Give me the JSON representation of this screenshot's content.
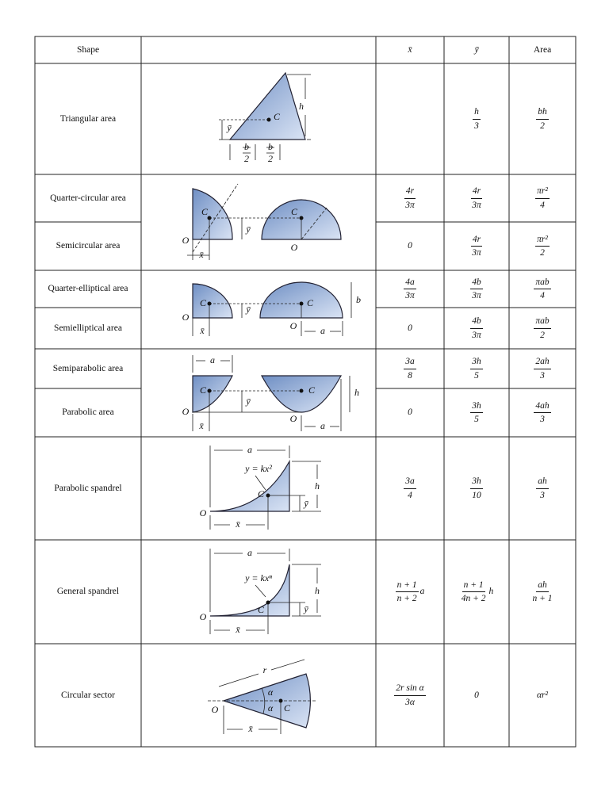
{
  "header": {
    "shape": "Shape",
    "x": "x̄",
    "y": "ȳ",
    "area": "Area"
  },
  "rows": [
    {
      "shape": "Triangular area",
      "y": {
        "num": "h",
        "den": "3"
      },
      "area": {
        "num": "bh",
        "den": "2"
      }
    },
    {
      "shape": "Quarter-circular area",
      "x": {
        "num": "4r",
        "den": "3π"
      },
      "y": {
        "num": "4r",
        "den": "3π"
      },
      "area": {
        "num": "πr²",
        "den": "4"
      }
    },
    {
      "shape": "Semicircular area",
      "x": 0,
      "y": {
        "num": "4r",
        "den": "3π"
      },
      "area": {
        "num": "πr²",
        "den": "2"
      }
    },
    {
      "shape": "Quarter-elliptical area",
      "x": {
        "num": "4a",
        "den": "3π"
      },
      "y": {
        "num": "4b",
        "den": "3π"
      },
      "area": {
        "num": "πab",
        "den": "4"
      }
    },
    {
      "shape": "Semielliptical area",
      "x": 0,
      "y": {
        "num": "4b",
        "den": "3π"
      },
      "area": {
        "num": "πab",
        "den": "2"
      }
    },
    {
      "shape": "Semiparabolic area",
      "x": {
        "num": "3a",
        "den": "8"
      },
      "y": {
        "num": "3h",
        "den": "5"
      },
      "area": {
        "num": "2ah",
        "den": "3"
      }
    },
    {
      "shape": "Parabolic area",
      "x": 0,
      "y": {
        "num": "3h",
        "den": "5"
      },
      "area": {
        "num": "4ah",
        "den": "3"
      }
    },
    {
      "shape": "Parabolic spandrel",
      "x": {
        "num": "3a",
        "den": "4"
      },
      "y": {
        "num": "3h",
        "den": "10"
      },
      "area": {
        "num": "ah",
        "den": "3"
      }
    },
    {
      "shape": "General spandrel",
      "x": {
        "num": "n + 1",
        "den": "n + 2",
        "suffix": "a"
      },
      "y": {
        "num": "n + 1",
        "den": "4n + 2",
        "suffix": "h"
      },
      "area": {
        "num": "ah",
        "den": "n + 1"
      }
    },
    {
      "shape": "Circular sector",
      "x": {
        "num": "2r sin α",
        "den": "3α"
      },
      "y": 0,
      "area": "αr²"
    }
  ],
  "figures": [
    {
      "labels": [
        "h",
        "C",
        "ȳ",
        "b",
        "2",
        "b",
        "2"
      ]
    },
    {
      "labels": [
        "C",
        "C",
        "O",
        "O",
        "ȳ",
        "x̄"
      ]
    },
    {
      "labels": [
        "C",
        "C",
        "O",
        "O",
        "ȳ",
        "x̄",
        "b",
        "a"
      ]
    },
    {
      "labels": [
        "a",
        "C",
        "C",
        "O",
        "O",
        "ȳ",
        "h",
        "x̄",
        "a"
      ]
    },
    {
      "labels": [
        "a",
        "y = kx²",
        "h",
        "C",
        "ȳ",
        "O",
        "x̄"
      ]
    },
    {
      "labels": [
        "a",
        "y = kxⁿ",
        "h",
        "C",
        "ȳ",
        "O",
        "x̄"
      ]
    },
    {
      "labels": [
        "r",
        "α",
        "α",
        "C",
        "O",
        "x̄"
      ]
    }
  ]
}
